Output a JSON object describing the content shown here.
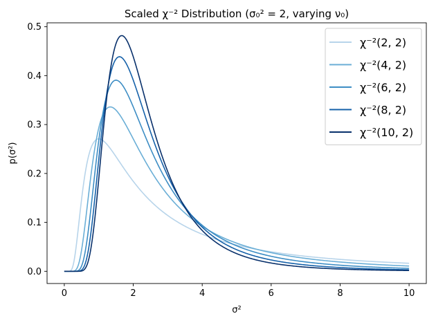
{
  "chart_data": {
    "type": "line",
    "title": "Scaled χ⁻² Distribution (σ₀² = 2, varying ν₀)",
    "xlabel": "σ²",
    "ylabel": "p(σ²)",
    "xlim": [
      -0.5,
      10.5
    ],
    "ylim": [
      -0.025,
      0.508
    ],
    "xticks": [
      0,
      2,
      4,
      6,
      8,
      10
    ],
    "xtick_labels": [
      "0",
      "2",
      "4",
      "6",
      "8",
      "10"
    ],
    "yticks": [
      0.0,
      0.1,
      0.2,
      0.3,
      0.4,
      0.5
    ],
    "ytick_labels": [
      "0.0",
      "0.1",
      "0.2",
      "0.3",
      "0.4",
      "0.5"
    ],
    "grid": false,
    "legend_position": "top-right",
    "series": [
      {
        "name": "χ⁻²(2, 2)",
        "nu": 2,
        "s2": 2,
        "color": "#b7d4ea"
      },
      {
        "name": "χ⁻²(4, 2)",
        "nu": 4,
        "s2": 2,
        "color": "#6aaed6"
      },
      {
        "name": "χ⁻²(6, 2)",
        "nu": 6,
        "s2": 2,
        "color": "#3d8dc4"
      },
      {
        "name": "χ⁻²(8, 2)",
        "nu": 8,
        "s2": 2,
        "color": "#1561a9"
      },
      {
        "name": "χ⁻²(10, 2)",
        "nu": 10,
        "s2": 2,
        "color": "#08306b"
      }
    ]
  }
}
